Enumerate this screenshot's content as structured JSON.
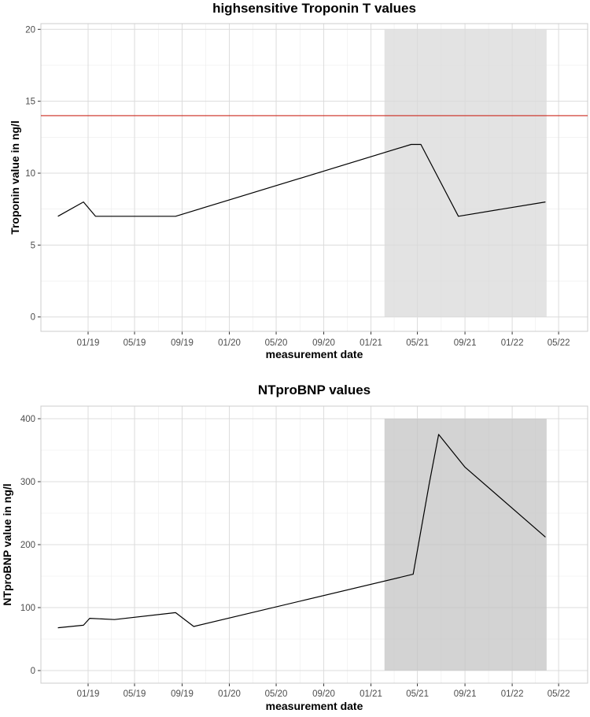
{
  "chart_data": [
    {
      "type": "line",
      "title": "highsensitive Troponin T values",
      "xlabel": "measurement date",
      "ylabel": "Troponin value in ng/l",
      "x_axis_type": "date",
      "xlim": [
        "2018-09-01",
        "2022-07-15"
      ],
      "ylim": [
        -1,
        20.4
      ],
      "x_ticks": [
        {
          "date": "2019-01-01",
          "label": "01/19"
        },
        {
          "date": "2019-05-01",
          "label": "05/19"
        },
        {
          "date": "2019-09-01",
          "label": "09/19"
        },
        {
          "date": "2020-01-01",
          "label": "01/20"
        },
        {
          "date": "2020-05-01",
          "label": "05/20"
        },
        {
          "date": "2020-09-01",
          "label": "09/20"
        },
        {
          "date": "2021-01-01",
          "label": "01/21"
        },
        {
          "date": "2021-05-01",
          "label": "05/21"
        },
        {
          "date": "2021-09-01",
          "label": "09/21"
        },
        {
          "date": "2022-01-01",
          "label": "01/22"
        },
        {
          "date": "2022-05-01",
          "label": "05/22"
        }
      ],
      "y_ticks": [
        {
          "value": 0,
          "label": "0"
        },
        {
          "value": 5,
          "label": "5"
        },
        {
          "value": 10,
          "label": "10"
        },
        {
          "value": 15,
          "label": "15"
        },
        {
          "value": 20,
          "label": "20"
        }
      ],
      "shaded_region": {
        "x_start": "2021-02-05",
        "x_end": "2022-03-31",
        "y_min": 0,
        "y_max": 20,
        "color": "#d9d9d9",
        "opacity": 0.75
      },
      "reference_line": {
        "y": 14,
        "color": "#cc2a1f"
      },
      "series": [
        {
          "color": "#000000",
          "points": [
            {
              "x": "2018-10-15",
              "y": 7
            },
            {
              "x": "2018-12-20",
              "y": 8
            },
            {
              "x": "2019-01-20",
              "y": 7
            },
            {
              "x": "2019-08-15",
              "y": 7
            },
            {
              "x": "2021-04-15",
              "y": 12
            },
            {
              "x": "2021-05-10",
              "y": 12
            },
            {
              "x": "2021-08-15",
              "y": 7
            },
            {
              "x": "2022-03-28",
              "y": 8
            }
          ]
        }
      ]
    },
    {
      "type": "line",
      "title": "NTproBNP values",
      "xlabel": "measurement date",
      "ylabel": "NTproBNP value in ng/l",
      "x_axis_type": "date",
      "xlim": [
        "2018-09-01",
        "2022-07-15"
      ],
      "ylim": [
        -20,
        420
      ],
      "x_ticks": [
        {
          "date": "2019-01-01",
          "label": "01/19"
        },
        {
          "date": "2019-05-01",
          "label": "05/19"
        },
        {
          "date": "2019-09-01",
          "label": "09/19"
        },
        {
          "date": "2020-01-01",
          "label": "01/20"
        },
        {
          "date": "2020-05-01",
          "label": "05/20"
        },
        {
          "date": "2020-09-01",
          "label": "09/20"
        },
        {
          "date": "2021-01-01",
          "label": "01/21"
        },
        {
          "date": "2021-05-01",
          "label": "05/21"
        },
        {
          "date": "2021-09-01",
          "label": "09/21"
        },
        {
          "date": "2022-01-01",
          "label": "01/22"
        },
        {
          "date": "2022-05-01",
          "label": "05/22"
        }
      ],
      "y_ticks": [
        {
          "value": 0,
          "label": "0"
        },
        {
          "value": 100,
          "label": "100"
        },
        {
          "value": 200,
          "label": "200"
        },
        {
          "value": 300,
          "label": "300"
        },
        {
          "value": 400,
          "label": "400"
        }
      ],
      "shaded_region": {
        "x_start": "2021-02-05",
        "x_end": "2022-03-31",
        "y_min": 0,
        "y_max": 400,
        "color": "#c4c4c4",
        "opacity": 0.75
      },
      "series": [
        {
          "color": "#000000",
          "points": [
            {
              "x": "2018-10-15",
              "y": 68
            },
            {
              "x": "2018-12-20",
              "y": 72
            },
            {
              "x": "2019-01-05",
              "y": 83
            },
            {
              "x": "2019-03-10",
              "y": 81
            },
            {
              "x": "2019-08-15",
              "y": 92
            },
            {
              "x": "2019-10-01",
              "y": 70
            },
            {
              "x": "2021-04-20",
              "y": 153
            },
            {
              "x": "2021-06-01",
              "y": 298
            },
            {
              "x": "2021-06-25",
              "y": 375
            },
            {
              "x": "2021-09-01",
              "y": 323
            },
            {
              "x": "2022-03-28",
              "y": 212
            }
          ]
        }
      ]
    }
  ]
}
